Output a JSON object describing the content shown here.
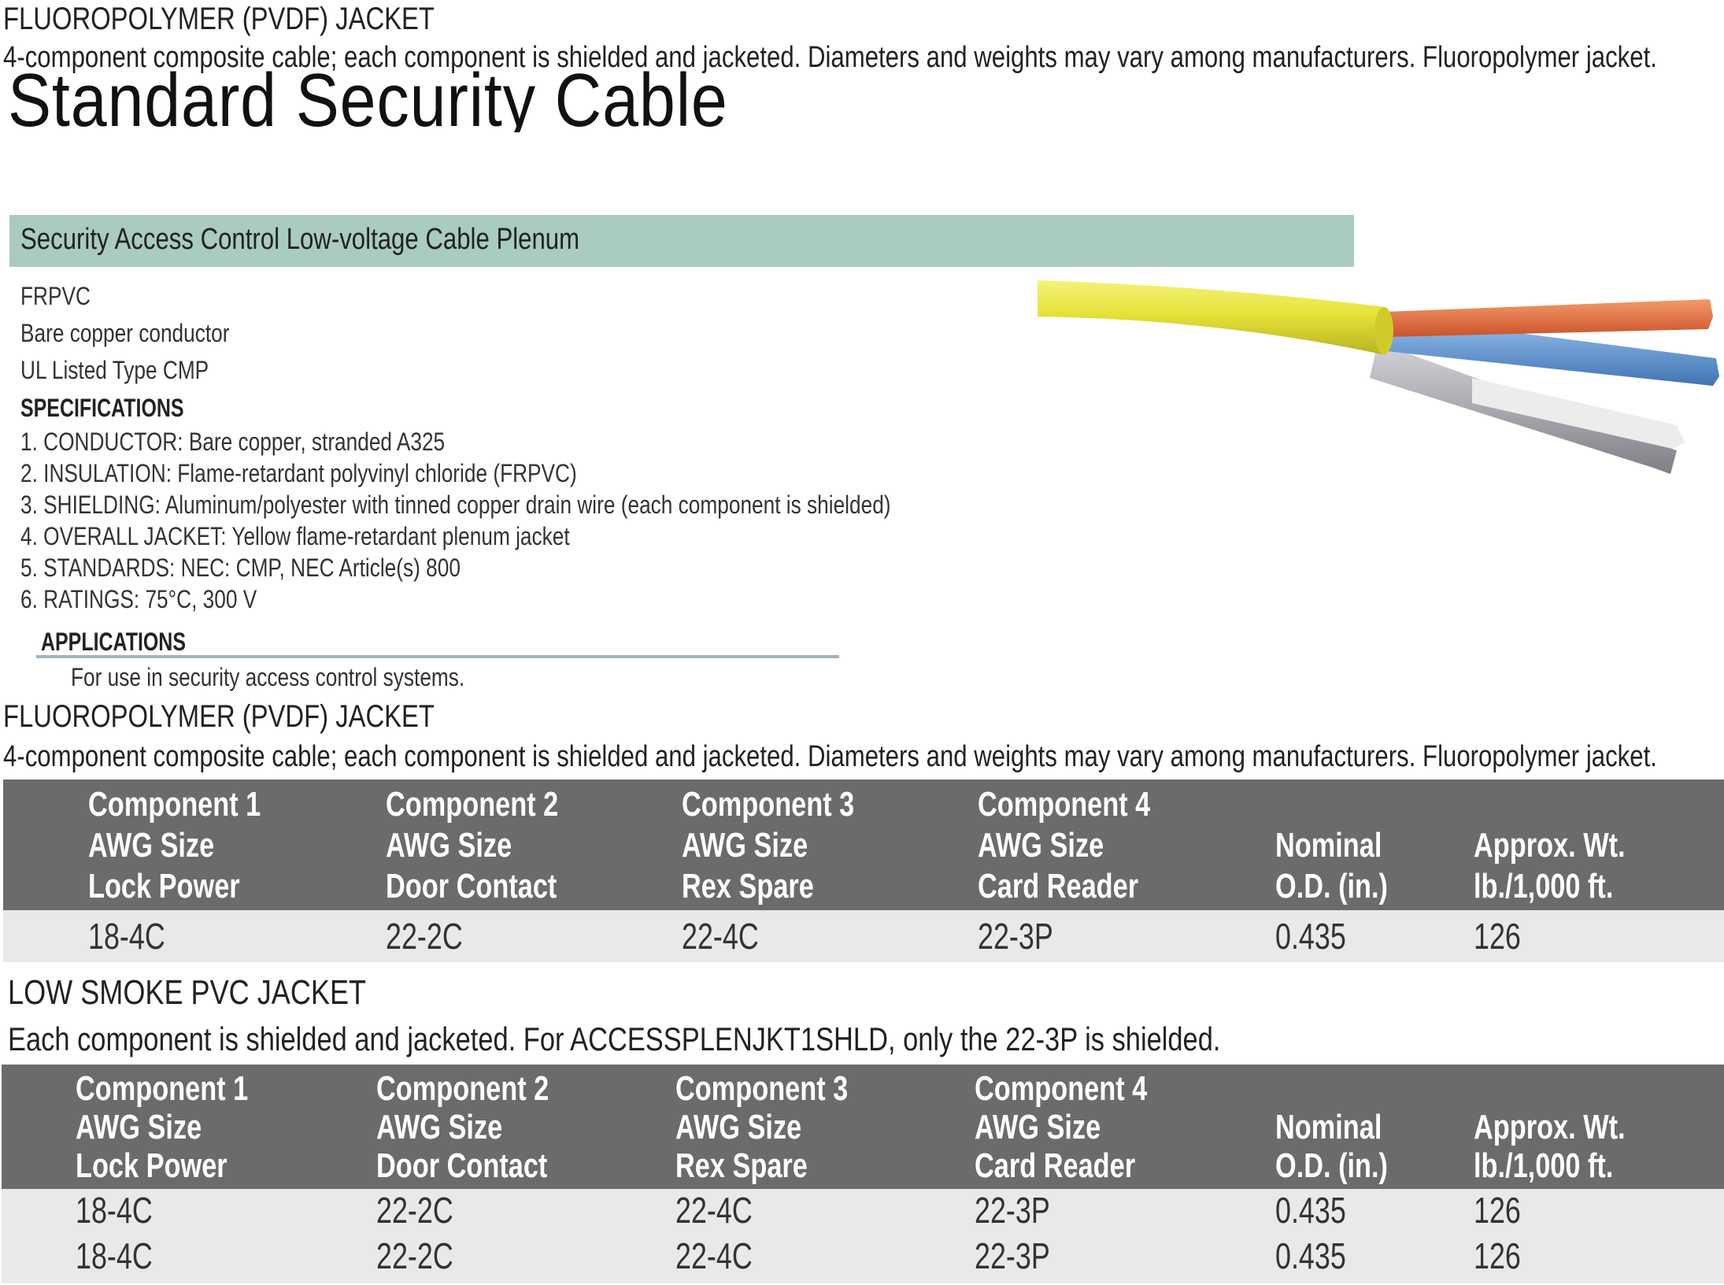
{
  "top": {
    "jacket_heading": "FLUOROPOLYMER (PVDF) JACKET",
    "description": "4-component composite cable; each component is shielded and jacketed. Diameters and weights may vary among manufacturers.  Fluoropolymer jacket."
  },
  "title": "Standard Security Cable",
  "banner": "Security Access Control Low-voltage Cable Plenum",
  "features": [
    "FRPVC",
    "Bare copper conductor",
    "UL Listed Type CMP"
  ],
  "specifications": {
    "heading": "SPECIFICATIONS",
    "items": [
      {
        "num": "1.",
        "text": "CONDUCTOR: Bare copper, stranded A325"
      },
      {
        "num": "2.",
        "text": "INSULATION: Flame-retardant polyvinyl chloride (FRPVC)"
      },
      {
        "num": "3.",
        "text": "SHIELDING: Aluminum/polyester with tinned copper drain wire (each component is shielded)"
      },
      {
        "num": "4.",
        "text": "OVERALL JACKET: Yellow flame-retardant plenum jacket"
      },
      {
        "num": "5.",
        "text": "STANDARDS: NEC: CMP, NEC Article(s) 800"
      },
      {
        "num": "6.",
        "text": "RATINGS: 75°C, 300 V"
      }
    ]
  },
  "applications": {
    "heading": "APPLICATIONS",
    "text": "For use in security access control systems."
  },
  "section1": {
    "heading": "FLUOROPOLYMER (PVDF) JACKET",
    "description": "4-component composite cable; each component is shielded and jacketed. Diameters and weights may vary among manufacturers.  Fluoropolymer jacket.",
    "columns": [
      [
        "Component 1",
        "AWG Size",
        "Lock Power"
      ],
      [
        "Component 2",
        "AWG Size",
        "Door Contact"
      ],
      [
        "Component 3",
        "AWG Size",
        "Rex Spare"
      ],
      [
        "Component 4",
        "AWG Size",
        "Card Reader"
      ],
      [
        "",
        "Nominal",
        "O.D. (in.)"
      ],
      [
        "",
        "Approx. Wt.",
        "lb./1,000 ft."
      ]
    ],
    "rows": [
      [
        "18-4C",
        "22-2C",
        "22-4C",
        "22-3P",
        "0.435",
        "126"
      ]
    ]
  },
  "section2": {
    "heading": "LOW SMOKE PVC JACKET",
    "description": "Each component is shielded and jacketed. For ACCESSPLENJKT1SHLD, only the 22-3P is shielded.",
    "columns": [
      [
        "Component 1",
        "AWG Size",
        "Lock Power"
      ],
      [
        "Component 2",
        "AWG Size",
        "Door Contact"
      ],
      [
        "Component 3",
        "AWG Size",
        "Rex Spare"
      ],
      [
        "Component 4",
        "AWG Size",
        "Card Reader"
      ],
      [
        "",
        "Nominal",
        "O.D. (in.)"
      ],
      [
        "",
        "Approx. Wt.",
        "lb./1,000 ft."
      ]
    ],
    "rows": [
      [
        "18-4C",
        "22-2C",
        "22-4C",
        "22-3P",
        "0.435",
        "126"
      ],
      [
        "18-4C",
        "22-2C",
        "22-4C",
        "22-3P",
        "0.435",
        "126"
      ]
    ]
  },
  "colors": {
    "banner": "#a9cbc0",
    "table_header": "#6b6b6b",
    "table_row": "#e9e9e9",
    "jacket_yellow": "#e6e23a",
    "wire_orange": "#e8703a",
    "wire_blue": "#6a9ed6",
    "wire_gray": "#a7a7ad"
  }
}
